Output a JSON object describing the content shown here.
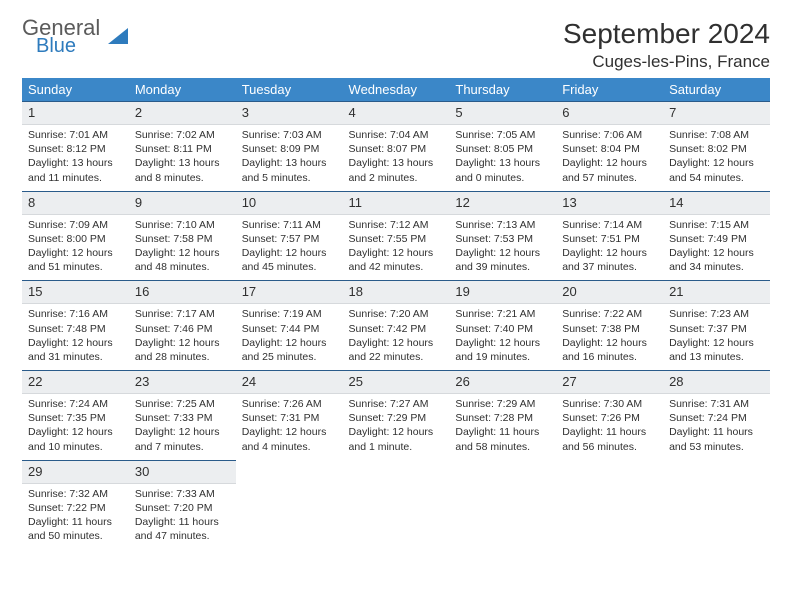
{
  "logo": {
    "word1": "General",
    "word2": "Blue"
  },
  "title": "September 2024",
  "location": "Cuges-les-Pins, France",
  "colors": {
    "header_bg": "#3b87c8",
    "header_fg": "#ffffff",
    "rule": "#2a5b8a",
    "daynum_bg": "#eceef0",
    "text": "#303030",
    "logo_blue": "#2e7bbd"
  },
  "day_headers": [
    "Sunday",
    "Monday",
    "Tuesday",
    "Wednesday",
    "Thursday",
    "Friday",
    "Saturday"
  ],
  "weeks": [
    [
      {
        "n": "1",
        "sunrise": "7:01 AM",
        "sunset": "8:12 PM",
        "daylight": "13 hours and 11 minutes."
      },
      {
        "n": "2",
        "sunrise": "7:02 AM",
        "sunset": "8:11 PM",
        "daylight": "13 hours and 8 minutes."
      },
      {
        "n": "3",
        "sunrise": "7:03 AM",
        "sunset": "8:09 PM",
        "daylight": "13 hours and 5 minutes."
      },
      {
        "n": "4",
        "sunrise": "7:04 AM",
        "sunset": "8:07 PM",
        "daylight": "13 hours and 2 minutes."
      },
      {
        "n": "5",
        "sunrise": "7:05 AM",
        "sunset": "8:05 PM",
        "daylight": "13 hours and 0 minutes."
      },
      {
        "n": "6",
        "sunrise": "7:06 AM",
        "sunset": "8:04 PM",
        "daylight": "12 hours and 57 minutes."
      },
      {
        "n": "7",
        "sunrise": "7:08 AM",
        "sunset": "8:02 PM",
        "daylight": "12 hours and 54 minutes."
      }
    ],
    [
      {
        "n": "8",
        "sunrise": "7:09 AM",
        "sunset": "8:00 PM",
        "daylight": "12 hours and 51 minutes."
      },
      {
        "n": "9",
        "sunrise": "7:10 AM",
        "sunset": "7:58 PM",
        "daylight": "12 hours and 48 minutes."
      },
      {
        "n": "10",
        "sunrise": "7:11 AM",
        "sunset": "7:57 PM",
        "daylight": "12 hours and 45 minutes."
      },
      {
        "n": "11",
        "sunrise": "7:12 AM",
        "sunset": "7:55 PM",
        "daylight": "12 hours and 42 minutes."
      },
      {
        "n": "12",
        "sunrise": "7:13 AM",
        "sunset": "7:53 PM",
        "daylight": "12 hours and 39 minutes."
      },
      {
        "n": "13",
        "sunrise": "7:14 AM",
        "sunset": "7:51 PM",
        "daylight": "12 hours and 37 minutes."
      },
      {
        "n": "14",
        "sunrise": "7:15 AM",
        "sunset": "7:49 PM",
        "daylight": "12 hours and 34 minutes."
      }
    ],
    [
      {
        "n": "15",
        "sunrise": "7:16 AM",
        "sunset": "7:48 PM",
        "daylight": "12 hours and 31 minutes."
      },
      {
        "n": "16",
        "sunrise": "7:17 AM",
        "sunset": "7:46 PM",
        "daylight": "12 hours and 28 minutes."
      },
      {
        "n": "17",
        "sunrise": "7:19 AM",
        "sunset": "7:44 PM",
        "daylight": "12 hours and 25 minutes."
      },
      {
        "n": "18",
        "sunrise": "7:20 AM",
        "sunset": "7:42 PM",
        "daylight": "12 hours and 22 minutes."
      },
      {
        "n": "19",
        "sunrise": "7:21 AM",
        "sunset": "7:40 PM",
        "daylight": "12 hours and 19 minutes."
      },
      {
        "n": "20",
        "sunrise": "7:22 AM",
        "sunset": "7:38 PM",
        "daylight": "12 hours and 16 minutes."
      },
      {
        "n": "21",
        "sunrise": "7:23 AM",
        "sunset": "7:37 PM",
        "daylight": "12 hours and 13 minutes."
      }
    ],
    [
      {
        "n": "22",
        "sunrise": "7:24 AM",
        "sunset": "7:35 PM",
        "daylight": "12 hours and 10 minutes."
      },
      {
        "n": "23",
        "sunrise": "7:25 AM",
        "sunset": "7:33 PM",
        "daylight": "12 hours and 7 minutes."
      },
      {
        "n": "24",
        "sunrise": "7:26 AM",
        "sunset": "7:31 PM",
        "daylight": "12 hours and 4 minutes."
      },
      {
        "n": "25",
        "sunrise": "7:27 AM",
        "sunset": "7:29 PM",
        "daylight": "12 hours and 1 minute."
      },
      {
        "n": "26",
        "sunrise": "7:29 AM",
        "sunset": "7:28 PM",
        "daylight": "11 hours and 58 minutes."
      },
      {
        "n": "27",
        "sunrise": "7:30 AM",
        "sunset": "7:26 PM",
        "daylight": "11 hours and 56 minutes."
      },
      {
        "n": "28",
        "sunrise": "7:31 AM",
        "sunset": "7:24 PM",
        "daylight": "11 hours and 53 minutes."
      }
    ],
    [
      {
        "n": "29",
        "sunrise": "7:32 AM",
        "sunset": "7:22 PM",
        "daylight": "11 hours and 50 minutes."
      },
      {
        "n": "30",
        "sunrise": "7:33 AM",
        "sunset": "7:20 PM",
        "daylight": "11 hours and 47 minutes."
      },
      null,
      null,
      null,
      null,
      null
    ]
  ],
  "labels": {
    "sunrise": "Sunrise: ",
    "sunset": "Sunset: ",
    "daylight": "Daylight: "
  }
}
